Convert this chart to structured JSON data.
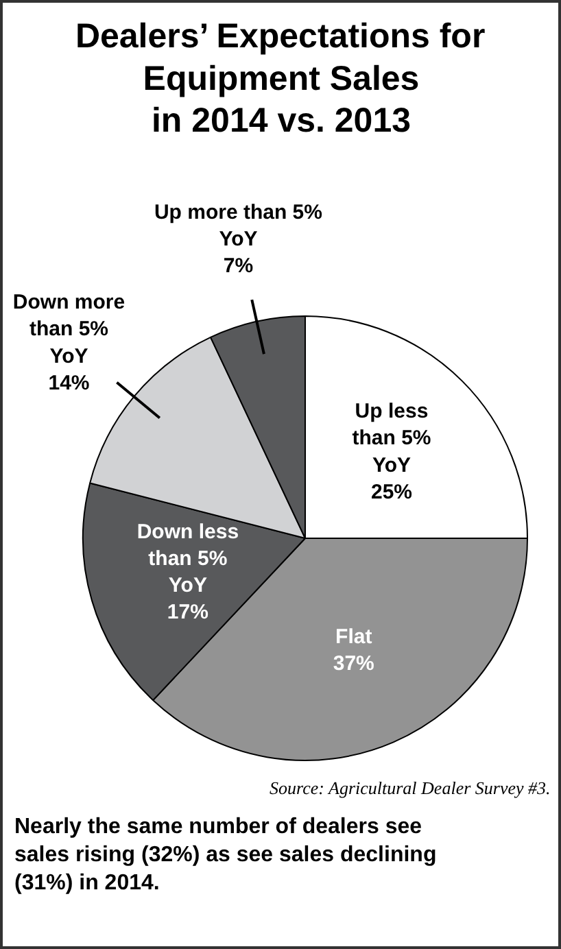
{
  "chart_data": {
    "type": "pie",
    "title": "Dealers’ Expectations for\nEquipment Sales\nin 2014 vs. 2013",
    "categories": [
      "Up less\nthan 5%\nYoY",
      "Flat",
      "Down less\nthan 5%\nYoY",
      "Down more\nthan 5%\nYoY",
      "Up more than 5%\nYoY"
    ],
    "values": [
      25,
      37,
      17,
      14,
      7
    ],
    "colors": [
      "#ffffff",
      "#939393",
      "#58595b",
      "#d1d2d4",
      "#58595b"
    ],
    "value_labels": [
      "25%",
      "37%",
      "17%",
      "14%",
      "7%"
    ],
    "annotations": [
      "Source: Agricultural Dealer Survey #3.",
      "Nearly the same number of dealers see sales rising (32%) as see sales declining (31%) in 2014."
    ]
  }
}
